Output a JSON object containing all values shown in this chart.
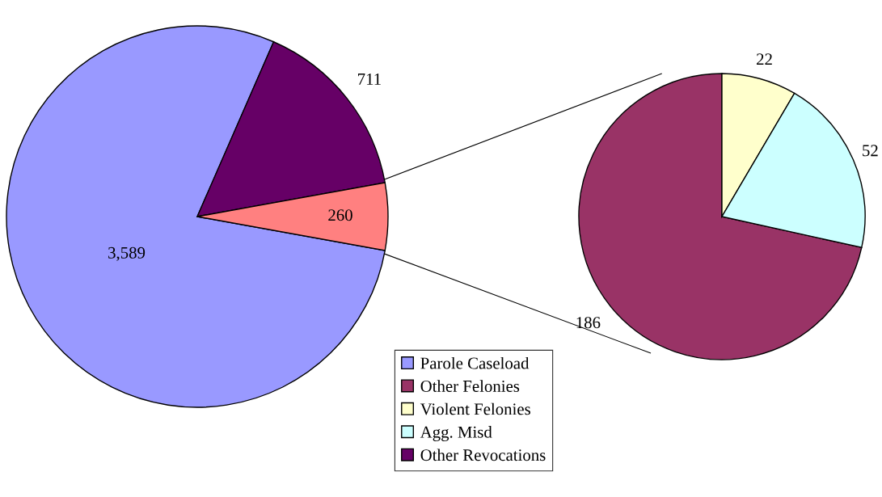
{
  "chart_data": [
    {
      "type": "pie",
      "categories": [
        "Parole Caseload",
        "Other Revocations",
        null
      ],
      "values": [
        3589,
        711,
        260
      ],
      "colors": [
        "#9999ff",
        "#660066",
        "#ff8080"
      ],
      "value_labels": [
        "3,589",
        "711",
        "260"
      ],
      "legend": "bottom"
    },
    {
      "type": "pie",
      "categories": [
        "Other Felonies",
        "Violent Felonies",
        "Agg. Misd"
      ],
      "values": [
        186,
        22,
        52
      ],
      "colors": [
        "#993366",
        "#ffffcc",
        "#ccffff"
      ],
      "value_labels": [
        "186",
        "22",
        "52"
      ],
      "legend": "bottom"
    }
  ]
}
